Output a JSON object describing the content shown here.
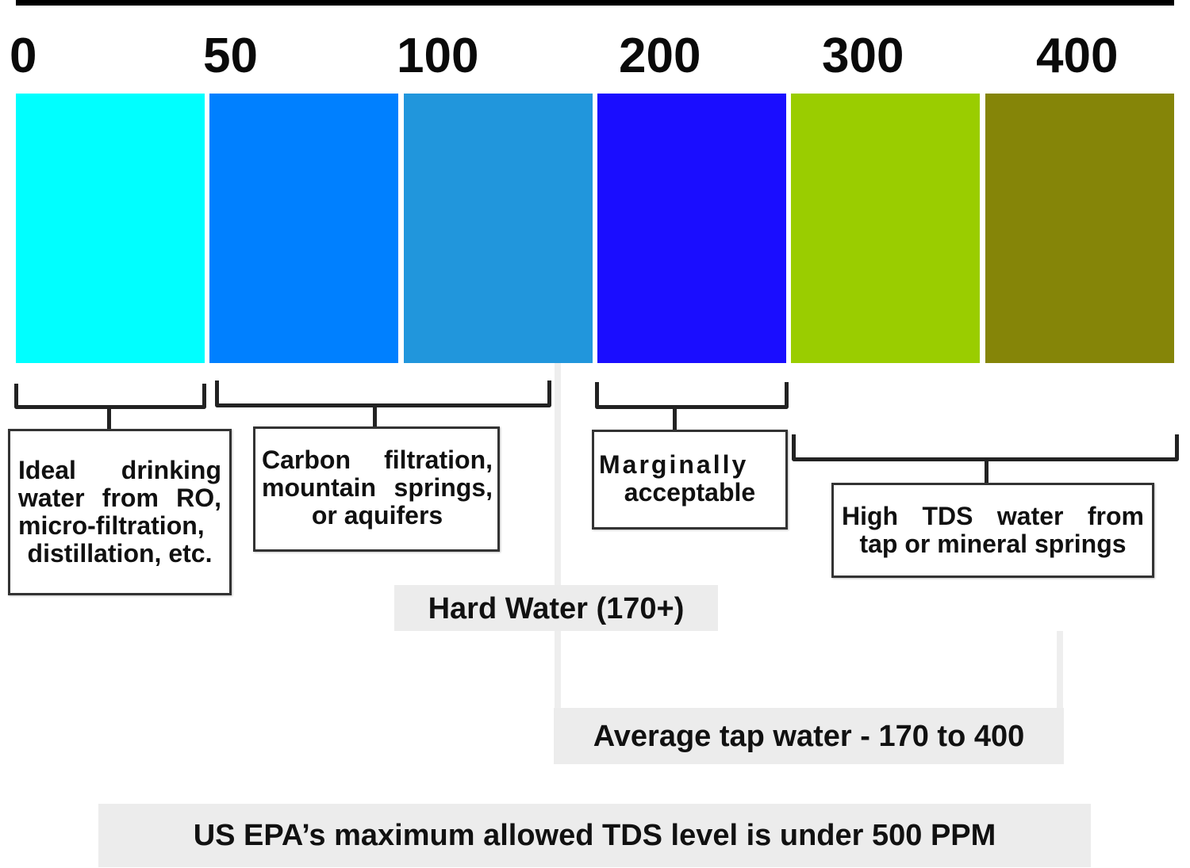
{
  "scale_ticks": [
    "0",
    "50",
    "100",
    "200",
    "300",
    "400"
  ],
  "swatches": [
    {
      "color": "#00ffff"
    },
    {
      "color": "#0080ff"
    },
    {
      "color": "#2196dc"
    },
    {
      "color": "#1a0dff"
    },
    {
      "color": "#9acd00"
    },
    {
      "color": "#858508"
    }
  ],
  "boxes": {
    "ideal": {
      "lines": [
        "Ideal drinking",
        "water from RO,",
        "micro-filtration,",
        "distillation, etc."
      ]
    },
    "carbon": {
      "lines": [
        "Carbon filtration,",
        "mountain springs,",
        "or aquifers"
      ]
    },
    "marginal": {
      "lines": [
        "Marginally",
        "acceptable"
      ]
    },
    "high": {
      "lines": [
        "High TDS water from",
        "tap or mineral springs"
      ]
    }
  },
  "bands": {
    "hard_water": "Hard Water (170+)",
    "average_tap": "Average tap water - 170 to 400",
    "epa": "US EPA’s maximum allowed TDS level is under 500 PPM"
  }
}
